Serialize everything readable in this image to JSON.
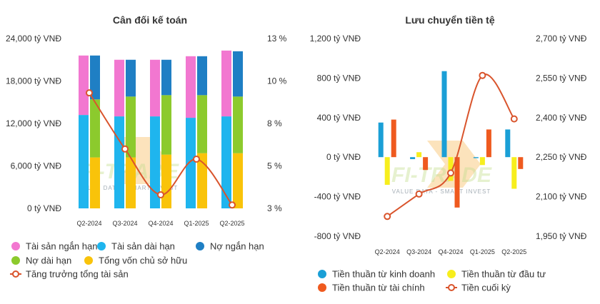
{
  "chart_data": [
    {
      "type": "bar",
      "title": "Cân đối kế toán",
      "categories": [
        "Q2-2024",
        "Q3-2024",
        "Q4-2024",
        "Q1-2025",
        "Q2-2025"
      ],
      "y_left": {
        "ticks": [
          "24,000 tỷ VNĐ",
          "18,000 tỷ VNĐ",
          "12,000 tỷ VNĐ",
          "6,000 tỷ VNĐ",
          "0 tỷ VNĐ"
        ],
        "ylim": [
          0,
          24000
        ]
      },
      "y_right": {
        "ticks": [
          "13 %",
          "10 %",
          "8 %",
          "5 %",
          "3 %"
        ],
        "ylim": [
          3,
          13
        ]
      },
      "stacks": {
        "assets": [
          {
            "name": "Tài sản dài hạn",
            "color": "#1fb5ee",
            "values": [
              13200,
              13000,
              13000,
              12800,
              13000
            ]
          },
          {
            "name": "Tài sản ngắn hạn",
            "color": "#f277d0",
            "values": [
              8400,
              8000,
              8000,
              8700,
              9300
            ]
          }
        ],
        "liabilities_equity": [
          {
            "name": "Tổng vốn chủ sở hữu",
            "color": "#f9c30a",
            "values": [
              7200,
              7200,
              7600,
              7800,
              7800
            ]
          },
          {
            "name": "Nợ dài hạn",
            "color": "#8cca2d",
            "values": [
              8200,
              8600,
              8400,
              8200,
              8000
            ]
          },
          {
            "name": "Nợ ngắn hạn",
            "color": "#1f7fc4",
            "values": [
              6200,
              5200,
              5000,
              5500,
              6400
            ]
          }
        ]
      },
      "line": {
        "name": "Tăng trưởng tổng tài sản",
        "color": "#d9542c",
        "axis": "right",
        "values": [
          9.8,
          6.5,
          3.8,
          5.9,
          3.2
        ]
      },
      "legend": [
        {
          "name": "Tài sản ngắn hạn",
          "color": "#f277d0",
          "shape": "circle"
        },
        {
          "name": "Tài sản dài hạn",
          "color": "#1fb5ee",
          "shape": "circle"
        },
        {
          "name": "Nợ ngắn hạn",
          "color": "#1f7fc4",
          "shape": "circle"
        },
        {
          "name": "Nợ dài hạn",
          "color": "#8cca2d",
          "shape": "circle"
        },
        {
          "name": "Tổng vốn chủ sở hữu",
          "color": "#f9c30a",
          "shape": "circle"
        },
        {
          "name": "Tăng trưởng tổng tài sản",
          "color": "#d9542c",
          "shape": "line"
        }
      ],
      "legend_placement": "bottom",
      "grid": false
    },
    {
      "type": "bar",
      "title": "Lưu chuyển tiền tệ",
      "categories": [
        "Q2-2024",
        "Q3-2024",
        "Q4-2024",
        "Q1-2025",
        "Q2-2025"
      ],
      "y_left": {
        "ticks": [
          "1,200 tỷ VNĐ",
          "800 tỷ VNĐ",
          "400 tỷ VNĐ",
          "0 tỷ VNĐ",
          "-400 tỷ VNĐ",
          "-800 tỷ VNĐ"
        ],
        "ylim": [
          -800,
          1200
        ]
      },
      "y_right": {
        "ticks": [
          "2,700 tỷ VNĐ",
          "2,550 tỷ VNĐ",
          "2,400 tỷ VNĐ",
          "2,250 tỷ VNĐ",
          "2,100 tỷ VNĐ",
          "1,950 tỷ VNĐ"
        ],
        "ylim": [
          1950,
          2700
        ]
      },
      "series": [
        {
          "name": "Tiền thuần từ kinh doanh",
          "color": "#1a9fd6",
          "values": [
            350,
            -20,
            870,
            -10,
            280
          ]
        },
        {
          "name": "Tiền thuần từ đầu tư",
          "color": "#f7ee1d",
          "values": [
            -280,
            50,
            -240,
            -80,
            -320
          ]
        },
        {
          "name": "Tiền thuần từ tài chính",
          "color": "#ef5a1f",
          "values": [
            380,
            -130,
            -510,
            280,
            -120
          ]
        }
      ],
      "line": {
        "name": "Tiền cuối kỳ",
        "color": "#d9542c",
        "axis": "right",
        "values": [
          2025,
          2110,
          2190,
          2560,
          2395
        ]
      },
      "legend": [
        {
          "name": "Tiền thuần từ kinh doanh",
          "color": "#1a9fd6",
          "shape": "circle"
        },
        {
          "name": "Tiền thuần từ đầu tư",
          "color": "#f7ee1d",
          "shape": "circle"
        },
        {
          "name": "Tiền thuần từ tài chính",
          "color": "#ef5a1f",
          "shape": "circle"
        },
        {
          "name": "Tiền cuối kỳ",
          "color": "#d9542c",
          "shape": "line"
        }
      ],
      "legend_placement": "bottom",
      "grid": false
    }
  ],
  "watermark": {
    "brand": "FI-TRADE",
    "tagline": "VALUE DATA - SMART INVEST"
  }
}
